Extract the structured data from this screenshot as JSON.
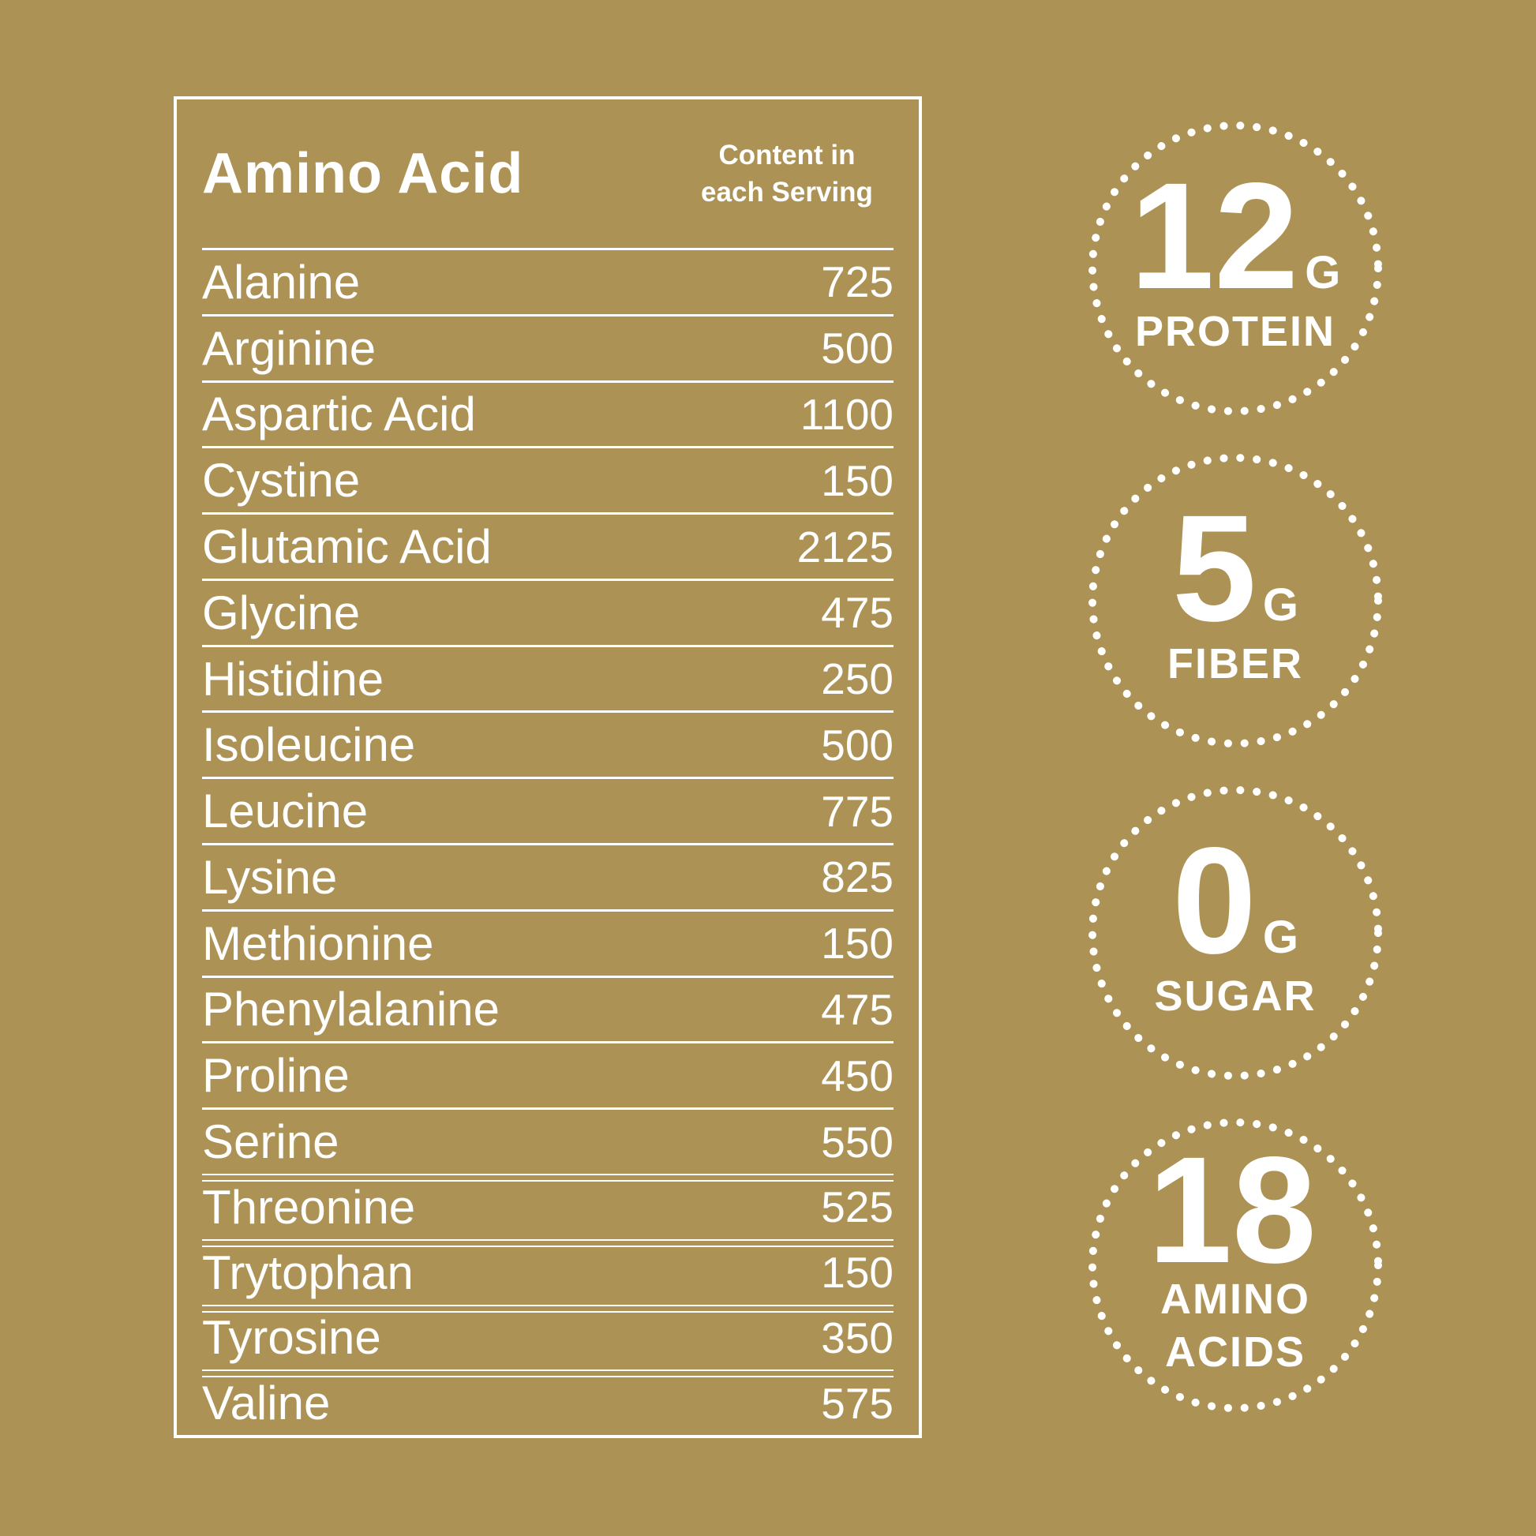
{
  "colors": {
    "background": "#AD9256",
    "text": "#FFFFFF"
  },
  "table": {
    "header": {
      "name_label": "Amino Acid",
      "value_label_line1": "Content in",
      "value_label_line2": "each Serving"
    },
    "rows": [
      {
        "name": "Alanine",
        "value": "725"
      },
      {
        "name": "Arginine",
        "value": "500"
      },
      {
        "name": "Aspartic Acid",
        "value": "1100"
      },
      {
        "name": "Cystine",
        "value": "150"
      },
      {
        "name": "Glutamic Acid",
        "value": "2125"
      },
      {
        "name": "Glycine",
        "value": "475"
      },
      {
        "name": "Histidine",
        "value": "250"
      },
      {
        "name": "Isoleucine",
        "value": "500"
      },
      {
        "name": "Leucine",
        "value": "775"
      },
      {
        "name": "Lysine",
        "value": "825"
      },
      {
        "name": "Methionine",
        "value": "150"
      },
      {
        "name": "Phenylalanine",
        "value": "475"
      },
      {
        "name": "Proline",
        "value": "450"
      },
      {
        "name": "Serine",
        "value": "550"
      },
      {
        "name": "Threonine",
        "value": "525"
      },
      {
        "name": "Trytophan",
        "value": "150"
      },
      {
        "name": "Tyrosine",
        "value": "350"
      },
      {
        "name": "Valine",
        "value": "575"
      }
    ]
  },
  "badges": [
    {
      "number": "12",
      "unit": "G",
      "label_lines": [
        "PROTEIN"
      ]
    },
    {
      "number": "5",
      "unit": "G",
      "label_lines": [
        "FIBER"
      ]
    },
    {
      "number": "0",
      "unit": "G",
      "label_lines": [
        "SUGAR"
      ]
    },
    {
      "number": "18",
      "unit": "",
      "label_lines": [
        "AMINO",
        "ACIDS"
      ]
    }
  ]
}
